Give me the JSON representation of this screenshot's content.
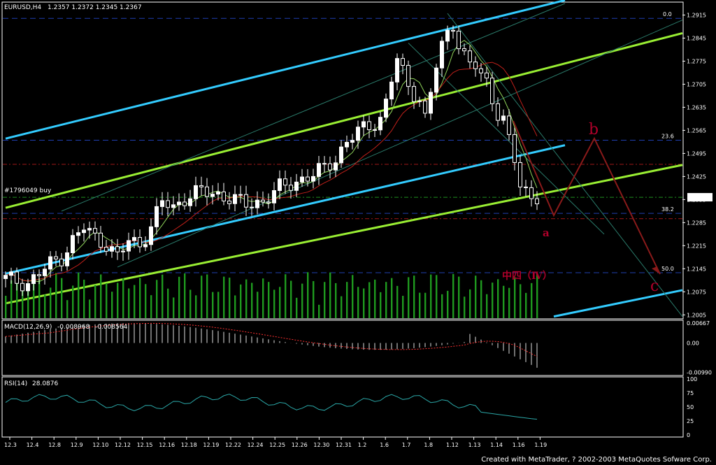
{
  "chart_data": {
    "type": "candlestick",
    "title": "EURUSD,H4",
    "ohlc_text": "1.2357 1.2372 1.2345 1.2367",
    "x_tick_labels": [
      "12.3",
      "12.4",
      "12.8",
      "12.9",
      "12.10",
      "12.12",
      "12.15",
      "12.16",
      "12.18",
      "12.19",
      "12.22",
      "12.24",
      "12.25",
      "12.26",
      "12.30",
      "12.31",
      "1.2",
      "1.6",
      "1.7",
      "1.8",
      "1.12",
      "1.13",
      "1.14",
      "1.16",
      "1.19"
    ],
    "price_axis": {
      "ticks": [
        "1.2915",
        "1.2845",
        "1.2775",
        "1.2705",
        "1.2635",
        "1.2565",
        "1.2495",
        "1.2425",
        "1.2355",
        "1.2285",
        "1.2215",
        "1.2145",
        "1.2075",
        "1.2005"
      ],
      "ylim": [
        1.1995,
        1.295
      ],
      "current_price": "1.2367"
    },
    "fibonacci_levels": [
      {
        "label": "0.0",
        "price": 1.2905
      },
      {
        "label": "23.6",
        "price": 1.2535
      },
      {
        "label": "38.2",
        "price": 1.2313
      },
      {
        "label": "50.0",
        "price": 1.2133
      }
    ],
    "order_label": "#1796049 buy",
    "order_price": 1.2362,
    "wave_labels": {
      "a": "a",
      "b": "b",
      "c": "c",
      "iv": "中四（Ⅳ）"
    },
    "close_path": [
      [
        0,
        1.2115
      ],
      [
        4,
        1.21
      ],
      [
        8,
        1.216
      ],
      [
        10,
        1.218
      ],
      [
        12,
        1.223
      ],
      [
        14,
        1.227
      ],
      [
        16,
        1.224
      ],
      [
        18,
        1.222
      ],
      [
        20,
        1.218
      ],
      [
        22,
        1.223
      ],
      [
        24,
        1.222
      ],
      [
        26,
        1.227
      ],
      [
        28,
        1.235
      ],
      [
        30,
        1.233
      ],
      [
        32,
        1.236
      ],
      [
        35,
        1.238
      ],
      [
        38,
        1.237
      ],
      [
        40,
        1.236
      ],
      [
        43,
        1.234
      ],
      [
        46,
        1.235
      ],
      [
        49,
        1.239
      ],
      [
        52,
        1.241
      ],
      [
        55,
        1.243
      ],
      [
        57,
        1.245
      ],
      [
        59,
        1.248
      ],
      [
        61,
        1.253
      ],
      [
        63,
        1.256
      ],
      [
        65,
        1.258
      ],
      [
        67,
        1.26
      ],
      [
        68,
        1.265
      ],
      [
        69,
        1.272
      ],
      [
        70,
        1.278
      ],
      [
        71,
        1.274
      ],
      [
        72,
        1.27
      ],
      [
        74,
        1.266
      ],
      [
        75,
        1.26
      ],
      [
        76,
        1.268
      ],
      [
        77,
        1.276
      ],
      [
        78,
        1.282
      ],
      [
        79,
        1.286
      ],
      [
        80,
        1.289
      ],
      [
        81,
        1.283
      ],
      [
        82,
        1.279
      ],
      [
        83,
        1.276
      ],
      [
        84,
        1.276
      ],
      [
        86,
        1.271
      ],
      [
        87,
        1.266
      ],
      [
        88,
        1.262
      ],
      [
        89,
        1.26
      ],
      [
        90,
        1.253
      ],
      [
        91,
        1.247
      ],
      [
        92,
        1.24
      ],
      [
        93,
        1.238
      ],
      [
        94,
        1.236
      ],
      [
        95,
        1.2367
      ]
    ],
    "macd": {
      "label": "MACD(12,26,9)",
      "main": "-0.008968",
      "signal": "-0.008564",
      "ticks": [
        "0.00667",
        "0.00",
        "-0.00990"
      ],
      "ylim": [
        -0.0105,
        0.0072
      ]
    },
    "rsi": {
      "label": "RSI(14)",
      "value": "28.0876",
      "ticks": [
        "100",
        "75",
        "50",
        "25",
        "0"
      ],
      "ylim": [
        0,
        100
      ]
    }
  },
  "colors": {
    "bull": "#ffffff",
    "bear": "#000000",
    "grid_fib": "#1f3fb0",
    "cyan": "#33ccff",
    "green": "#99ee33",
    "ma_fast": "#8fd35a",
    "ma_slow": "#c0201a",
    "wave": "#8a1a1a",
    "macd_hist": "#bbbbbb",
    "macd_signal": "#ff3030",
    "rsi": "#2aa6a6",
    "volume": "#1f9a1f"
  },
  "footer": "Created with MetaTrader, ? 2002-2003 MetaQuotes Sofware Corp."
}
